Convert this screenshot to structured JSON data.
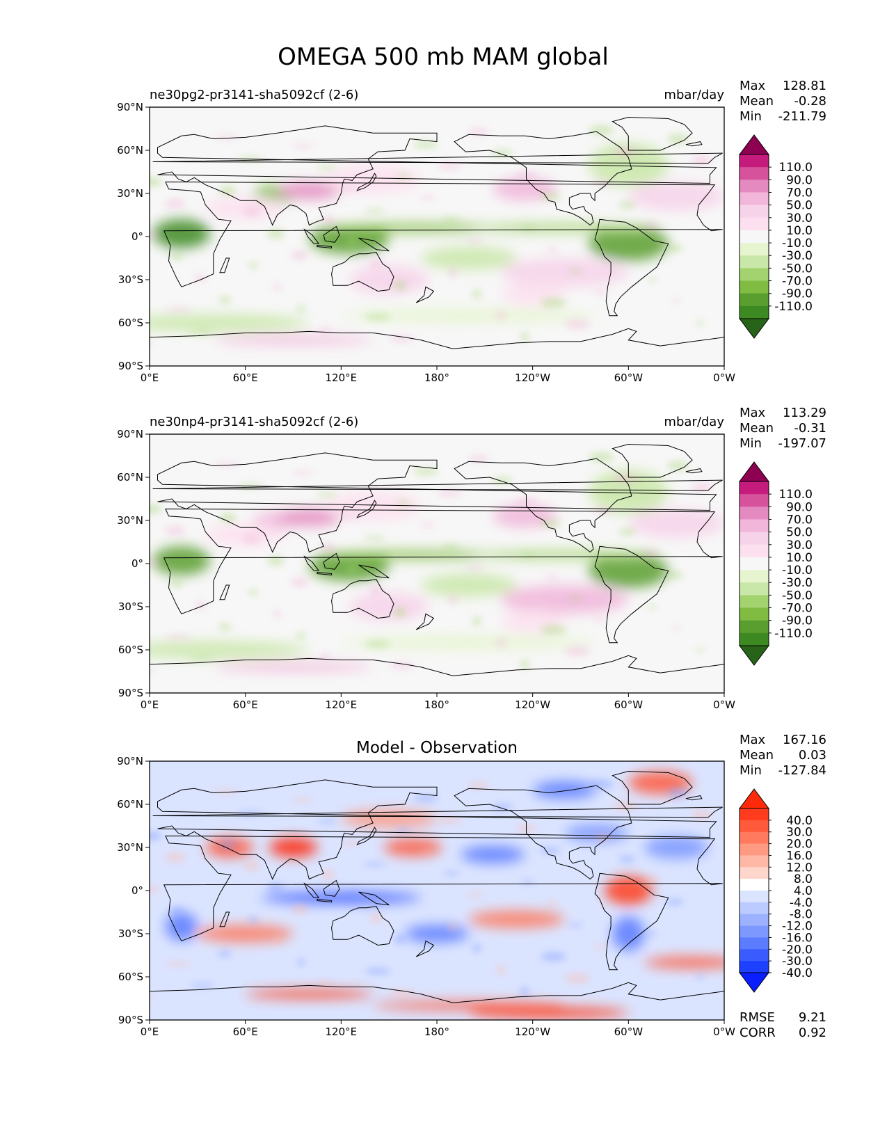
{
  "figure": {
    "title": "OMEGA 500 mb MAM global"
  },
  "chart_data": [
    {
      "type": "heatmap",
      "title": "ne30pg2-pr3141-sha5092cf (2-6)",
      "units": "mbar/day",
      "stats": [
        {
          "label": "Max",
          "value": "128.81"
        },
        {
          "label": "Mean",
          "value": "-0.28"
        },
        {
          "label": "Min",
          "value": "-211.79"
        }
      ],
      "x_ticks": [
        "0°E",
        "60°E",
        "120°E",
        "180°",
        "120°W",
        "60°W",
        "0°W"
      ],
      "y_ticks": [
        "90°N",
        "60°N",
        "30°N",
        "0°",
        "30°S",
        "60°S",
        "90°S"
      ],
      "xlim": [
        0,
        360
      ],
      "ylim": [
        -90,
        90
      ],
      "colorbar_labels": [
        "110.0",
        "90.0",
        "70.0",
        "50.0",
        "30.0",
        "10.0",
        "-10.0",
        "-30.0",
        "-50.0",
        "-70.0",
        "-90.0",
        "-110.0"
      ],
      "colormap": [
        "#8e0152",
        "#c51b7d",
        "#d6529a",
        "#e48ac0",
        "#f1b6da",
        "#f7d3ea",
        "#fde0ef",
        "#f7f7f7",
        "#e6f5d0",
        "#c9e7a8",
        "#a3d36f",
        "#7fbc41",
        "#5a9e2f",
        "#3e8a22",
        "#276419"
      ]
    },
    {
      "type": "heatmap",
      "title": "ne30np4-pr3141-sha5092cf (2-6)",
      "units": "mbar/day",
      "stats": [
        {
          "label": "Max",
          "value": "113.29"
        },
        {
          "label": "Mean",
          "value": "-0.31"
        },
        {
          "label": "Min",
          "value": "-197.07"
        }
      ],
      "x_ticks": [
        "0°E",
        "60°E",
        "120°E",
        "180°",
        "120°W",
        "60°W",
        "0°W"
      ],
      "y_ticks": [
        "90°N",
        "60°N",
        "30°N",
        "0°",
        "30°S",
        "60°S",
        "90°S"
      ],
      "xlim": [
        0,
        360
      ],
      "ylim": [
        -90,
        90
      ],
      "colorbar_labels": [
        "110.0",
        "90.0",
        "70.0",
        "50.0",
        "30.0",
        "10.0",
        "-10.0",
        "-30.0",
        "-50.0",
        "-70.0",
        "-90.0",
        "-110.0"
      ],
      "colormap": [
        "#8e0152",
        "#c51b7d",
        "#d6529a",
        "#e48ac0",
        "#f1b6da",
        "#f7d3ea",
        "#fde0ef",
        "#f7f7f7",
        "#e6f5d0",
        "#c9e7a8",
        "#a3d36f",
        "#7fbc41",
        "#5a9e2f",
        "#3e8a22",
        "#276419"
      ]
    },
    {
      "type": "heatmap",
      "title": "Model - Observation",
      "units": "",
      "stats": [
        {
          "label": "Max",
          "value": "167.16"
        },
        {
          "label": "Mean",
          "value": "0.03"
        },
        {
          "label": "Min",
          "value": "-127.84"
        }
      ],
      "bottom_stats": [
        {
          "label": "RMSE",
          "value": "9.21"
        },
        {
          "label": "CORR",
          "value": "0.92"
        }
      ],
      "x_ticks": [
        "0°E",
        "60°E",
        "120°E",
        "180°",
        "120°W",
        "60°W",
        "0°W"
      ],
      "y_ticks": [
        "90°N",
        "60°N",
        "30°N",
        "0°",
        "30°S",
        "60°S",
        "90°S"
      ],
      "xlim": [
        0,
        360
      ],
      "ylim": [
        -90,
        90
      ],
      "colorbar_labels": [
        "40.0",
        "30.0",
        "20.0",
        "16.0",
        "12.0",
        "8.0",
        "4.0",
        "-4.0",
        "-8.0",
        "-12.0",
        "-16.0",
        "-20.0",
        "-30.0",
        "-40.0"
      ],
      "colormap": [
        "#ff2a0a",
        "#ff3c1e",
        "#ff5a3c",
        "#ff7a5e",
        "#ff9a82",
        "#ffb8a6",
        "#ffd6cc",
        "#ffffff",
        "#dbe4ff",
        "#bccbff",
        "#9db2ff",
        "#7d98ff",
        "#5c7cff",
        "#3a5cff",
        "#1e40ff",
        "#0a1eff"
      ]
    }
  ]
}
